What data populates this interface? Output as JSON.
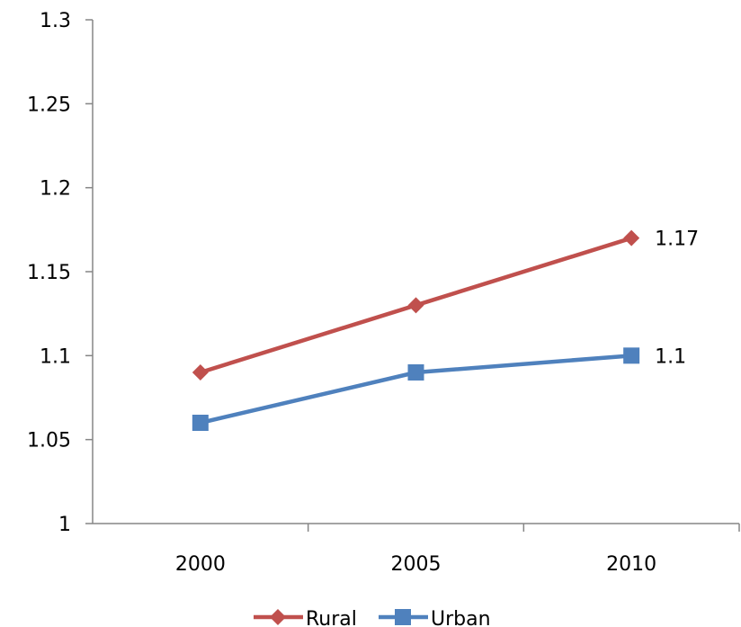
{
  "chart_data": {
    "type": "line",
    "categories": [
      "2000",
      "2005",
      "2010"
    ],
    "yticks": [
      "1",
      "1.05",
      "1.1",
      "1.15",
      "1.2",
      "1.25",
      "1.3"
    ],
    "ylim": [
      1,
      1.3
    ],
    "grid": false,
    "legend_position": "bottom",
    "series": [
      {
        "name": "Rural",
        "values": [
          1.09,
          1.13,
          1.17
        ],
        "color": "#c0504d",
        "marker": "diamond",
        "end_label": "1.17"
      },
      {
        "name": "Urban",
        "values": [
          1.06,
          1.09,
          1.1
        ],
        "color": "#4f81bd",
        "marker": "square",
        "end_label": "1.1"
      }
    ]
  }
}
